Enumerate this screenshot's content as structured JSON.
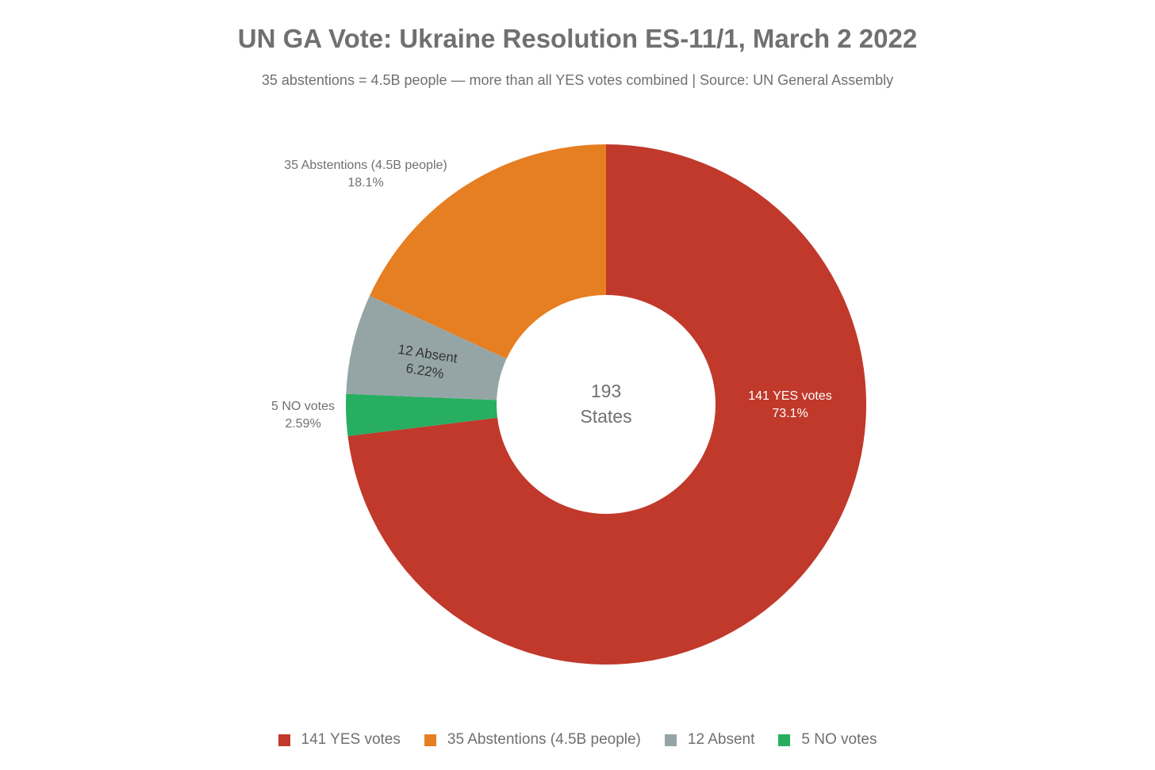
{
  "chart_data": {
    "type": "pie",
    "title": "UN GA Vote: Ukraine Resolution ES-11/1, March 2 2022",
    "subtitle": "35 abstentions = 4.5B people — more than all YES votes combined | Source: UN General Assembly",
    "center_label": [
      "193",
      "States"
    ],
    "slices": [
      {
        "name": "141 YES votes",
        "value": 141,
        "percent_label": "73.1%",
        "color": "#c0392b",
        "label_placement": "inside"
      },
      {
        "name": "5 NO votes",
        "value": 5,
        "percent_label": "2.59%",
        "color": "#27ae60",
        "label_placement": "outside"
      },
      {
        "name": "12 Absent",
        "value": 12,
        "percent_label": "6.22%",
        "color": "#95a5a6",
        "label_placement": "inside"
      },
      {
        "name": "35 Abstentions (4.5B people)",
        "value": 35,
        "percent_label": "18.1%",
        "color": "#e67e22",
        "label_placement": "outside"
      }
    ],
    "legend": [
      {
        "name": "141 YES votes",
        "color": "#c0392b"
      },
      {
        "name": "35 Abstentions (4.5B people)",
        "color": "#e67e22"
      },
      {
        "name": "12 Absent",
        "color": "#95a5a6"
      },
      {
        "name": "5 NO votes",
        "color": "#27ae60"
      }
    ],
    "legend_position": "bottom"
  }
}
